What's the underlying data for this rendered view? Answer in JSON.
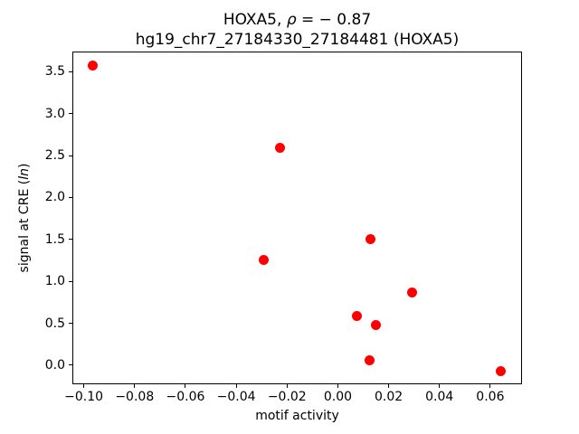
{
  "figure": {
    "title": {
      "line1_prefix": "HOXA5, ",
      "line1_rho": "ρ",
      "line1_suffix": " = − 0.87",
      "line2": "hg19_chr7_27184330_27184481 (HOXA5)"
    },
    "xlabel": "motif activity",
    "ylabel": {
      "prefix": "signal at CRE (",
      "italic": "ln",
      "suffix": ")"
    }
  },
  "chart_data": {
    "type": "scatter",
    "title": "HOXA5, ρ = −0.87",
    "subtitle": "hg19_chr7_27184330_27184481 (HOXA5)",
    "xlabel": "motif activity",
    "ylabel": "signal at CRE (ln)",
    "correlation_rho": -0.87,
    "marker_color": "#ff0000",
    "axis_color": "#000000",
    "background_color": "#ffffff",
    "grid": false,
    "legend": false,
    "xlim": [
      -0.1045,
      0.0725
    ],
    "ylim": [
      -0.227,
      3.74
    ],
    "x_tick_values": [
      -0.1,
      -0.08,
      -0.06,
      -0.04,
      -0.02,
      0.0,
      0.02,
      0.04,
      0.06
    ],
    "x_tick_labels": [
      "−0.10",
      "−0.08",
      "−0.06",
      "−0.04",
      "−0.02",
      "0.00",
      "0.02",
      "0.04",
      "0.06"
    ],
    "y_tick_values": [
      0.0,
      0.5,
      1.0,
      1.5,
      2.0,
      2.5,
      3.0,
      3.5
    ],
    "y_tick_labels": [
      "0.0",
      "0.5",
      "1.0",
      "1.5",
      "2.0",
      "2.5",
      "3.0",
      "3.5"
    ],
    "points": [
      {
        "x": -0.0965,
        "y": 3.57
      },
      {
        "x": -0.0226,
        "y": 2.59
      },
      {
        "x": -0.0293,
        "y": 1.26
      },
      {
        "x": 0.0129,
        "y": 1.5
      },
      {
        "x": 0.0291,
        "y": 0.87
      },
      {
        "x": 0.0074,
        "y": 0.59
      },
      {
        "x": 0.0151,
        "y": 0.48
      },
      {
        "x": 0.0125,
        "y": 0.06
      },
      {
        "x": 0.0643,
        "y": -0.07
      }
    ]
  }
}
